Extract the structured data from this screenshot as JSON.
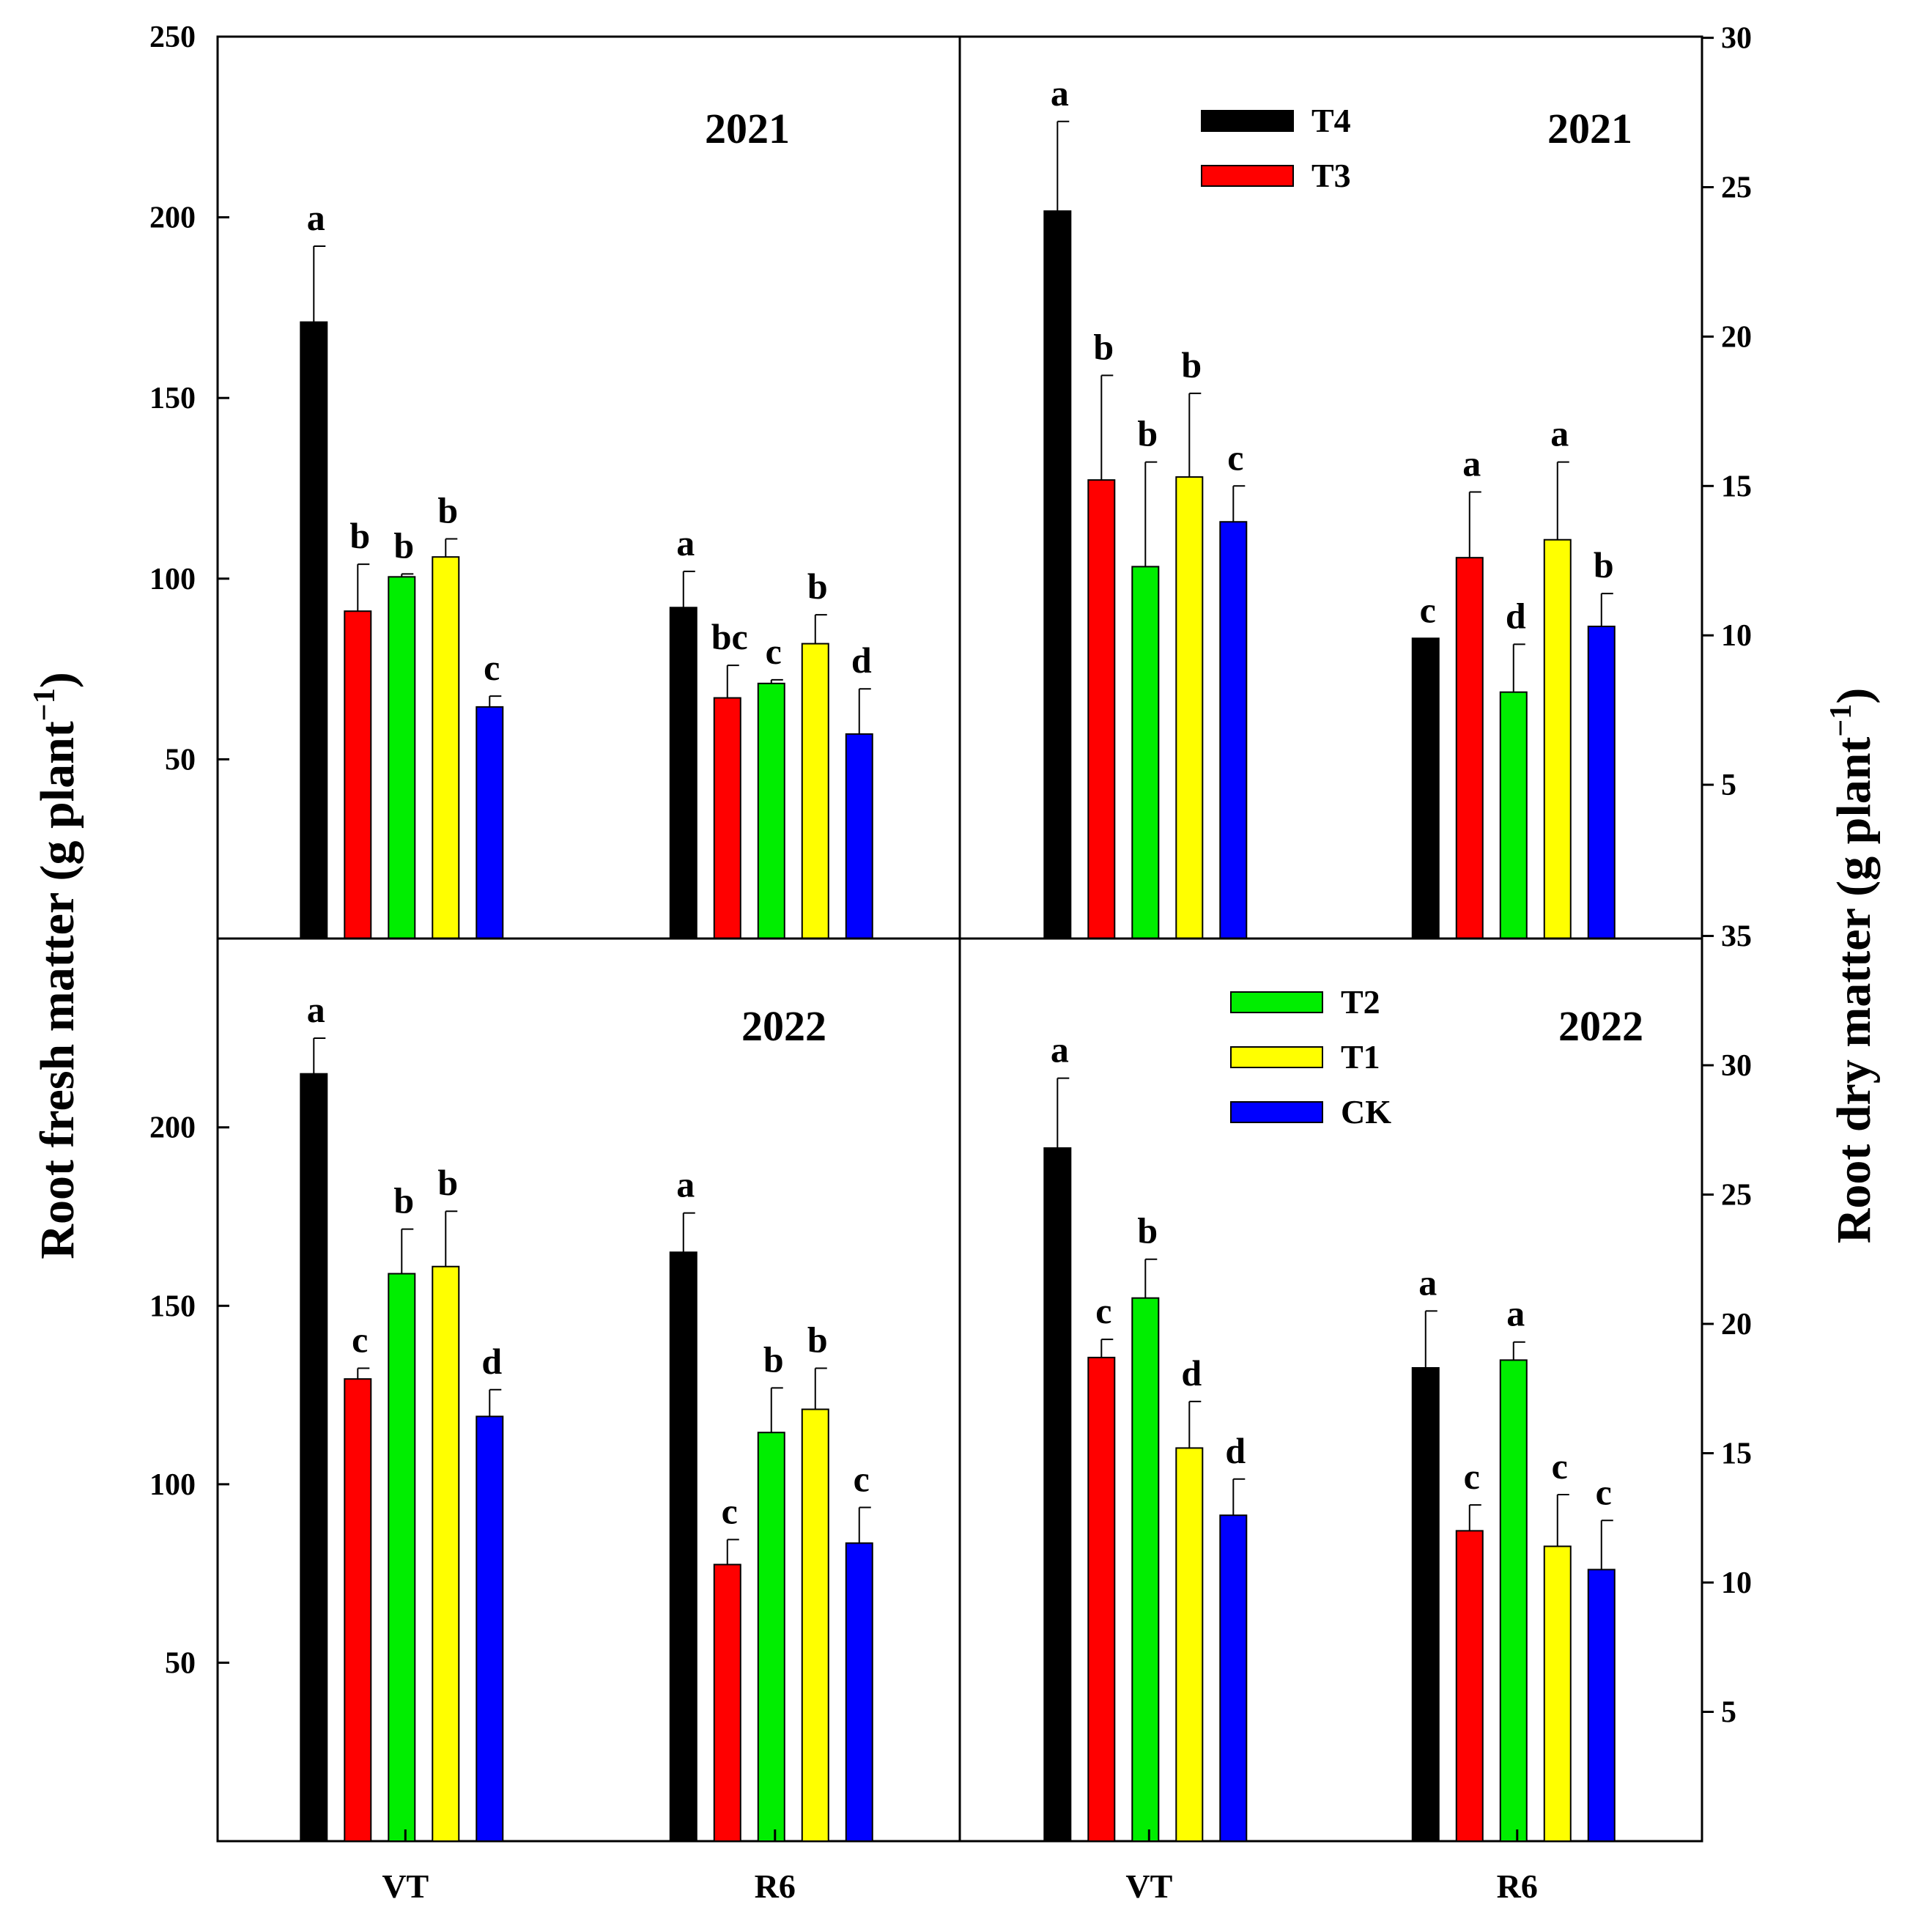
{
  "colors": {
    "T4": "#000000",
    "T3": "#ff0000",
    "T2": "#00ee00",
    "T1": "#ffff00",
    "CK": "#0000ff"
  },
  "series_names": [
    "T4",
    "T3",
    "T2",
    "T1",
    "CK"
  ],
  "categories": [
    "VT",
    "R6"
  ],
  "y_axes": {
    "left_title": "Root fresh matter (g plant",
    "right_title": "Root dry matter (g plant",
    "exponent": "−1",
    "left_close": ")",
    "right_close": ")"
  },
  "chart_data": [
    {
      "type": "bar",
      "panel": "top-left",
      "title": "2021",
      "ylim": [
        0,
        250
      ],
      "yticks": [
        "50",
        "100",
        "150",
        "200",
        "250"
      ],
      "series": [
        {
          "name": "T4",
          "values": [
            171,
            92
          ],
          "errors": [
            21,
            10
          ],
          "letters": [
            "a",
            "a"
          ]
        },
        {
          "name": "T3",
          "values": [
            91,
            67
          ],
          "errors": [
            13,
            9
          ],
          "letters": [
            "b",
            "bc"
          ]
        },
        {
          "name": "T2",
          "values": [
            100.5,
            71
          ],
          "errors": [
            0.8,
            1
          ],
          "letters": [
            "b",
            "c"
          ]
        },
        {
          "name": "T1",
          "values": [
            106,
            82
          ],
          "errors": [
            5,
            8
          ],
          "letters": [
            "b",
            "b"
          ]
        },
        {
          "name": "CK",
          "values": [
            64.5,
            57
          ],
          "errors": [
            3,
            12.5
          ],
          "letters": [
            "c",
            "d"
          ]
        }
      ]
    },
    {
      "type": "bar",
      "panel": "top-right",
      "title": "2021",
      "ylim": [
        0,
        30
      ],
      "yticks": [
        "5",
        "10",
        "15",
        "20",
        "25",
        "30"
      ],
      "legend": [
        "T4",
        "T3"
      ],
      "series": [
        {
          "name": "T4",
          "values": [
            24.2,
            9.9
          ],
          "errors": [
            3,
            0
          ],
          "letters": [
            "a",
            "c"
          ]
        },
        {
          "name": "T3",
          "values": [
            15.2,
            12.6
          ],
          "errors": [
            3.5,
            2.2
          ],
          "letters": [
            "b",
            "a"
          ]
        },
        {
          "name": "T2",
          "values": [
            12.3,
            8.1
          ],
          "errors": [
            3.5,
            1.6
          ],
          "letters": [
            "b",
            "d"
          ]
        },
        {
          "name": "T1",
          "values": [
            15.3,
            13.2
          ],
          "errors": [
            2.8,
            2.6
          ],
          "letters": [
            "b",
            "a"
          ]
        },
        {
          "name": "CK",
          "values": [
            13.8,
            10.3
          ],
          "errors": [
            1.2,
            1.1
          ],
          "letters": [
            "c",
            "b"
          ]
        }
      ]
    },
    {
      "type": "bar",
      "panel": "bottom-left",
      "title": "2022",
      "ylim": [
        0,
        250
      ],
      "yticks": [
        "50",
        "100",
        "150",
        "200"
      ],
      "series": [
        {
          "name": "T4",
          "values": [
            215,
            165
          ],
          "errors": [
            10,
            11
          ],
          "letters": [
            "a",
            "a"
          ]
        },
        {
          "name": "T3",
          "values": [
            129.5,
            77.5
          ],
          "errors": [
            3,
            7
          ],
          "letters": [
            "c",
            "c"
          ]
        },
        {
          "name": "T2",
          "values": [
            159,
            114.5
          ],
          "errors": [
            12.5,
            12.5
          ],
          "letters": [
            "b",
            "b"
          ]
        },
        {
          "name": "T1",
          "values": [
            161,
            121
          ],
          "errors": [
            15.5,
            11.5
          ],
          "letters": [
            "b",
            "b"
          ]
        },
        {
          "name": "CK",
          "values": [
            119,
            83.5
          ],
          "errors": [
            7.5,
            10
          ],
          "letters": [
            "d",
            "c"
          ]
        }
      ]
    },
    {
      "type": "bar",
      "panel": "bottom-right",
      "title": "2022",
      "ylim": [
        0,
        35
      ],
      "yticks": [
        "5",
        "10",
        "15",
        "20",
        "25",
        "30",
        "35"
      ],
      "legend": [
        "T2",
        "T1",
        "CK"
      ],
      "series": [
        {
          "name": "T4",
          "values": [
            26.8,
            18.3
          ],
          "errors": [
            2.7,
            2.2
          ],
          "letters": [
            "a",
            "a"
          ]
        },
        {
          "name": "T3",
          "values": [
            18.7,
            12
          ],
          "errors": [
            0.7,
            1
          ],
          "letters": [
            "c",
            "c"
          ]
        },
        {
          "name": "T2",
          "values": [
            21,
            18.6
          ],
          "errors": [
            1.5,
            0.7
          ],
          "letters": [
            "b",
            "a"
          ]
        },
        {
          "name": "T1",
          "values": [
            15.2,
            11.4
          ],
          "errors": [
            1.8,
            2
          ],
          "letters": [
            "d",
            "c"
          ]
        },
        {
          "name": "CK",
          "values": [
            12.6,
            10.5
          ],
          "errors": [
            1.4,
            1.9
          ],
          "letters": [
            "d",
            "c"
          ]
        }
      ]
    }
  ]
}
